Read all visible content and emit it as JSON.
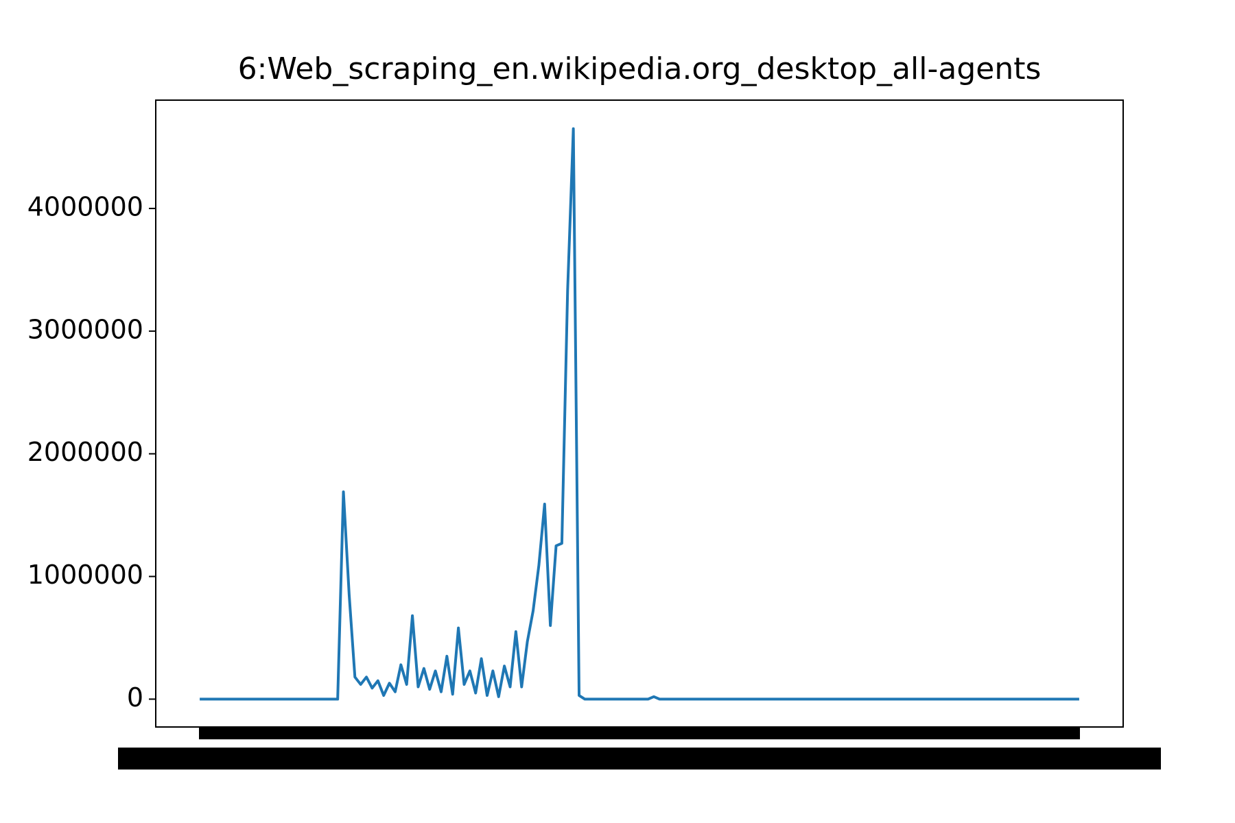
{
  "chart_data": {
    "type": "line",
    "title": "6:Web_scraping_en.wikipedia.org_desktop_all-agents",
    "series": [
      {
        "color": "#1f77b4",
        "values": [
          0,
          0,
          0,
          0,
          0,
          0,
          0,
          0,
          0,
          0,
          0,
          0,
          0,
          0,
          0,
          0,
          0,
          0,
          0,
          0,
          0,
          0,
          0,
          0,
          0,
          1690000,
          850000,
          180000,
          120000,
          180000,
          90000,
          150000,
          30000,
          130000,
          60000,
          280000,
          120000,
          680000,
          100000,
          250000,
          80000,
          230000,
          60000,
          350000,
          40000,
          580000,
          120000,
          230000,
          50000,
          330000,
          30000,
          230000,
          20000,
          270000,
          100000,
          550000,
          100000,
          470000,
          720000,
          1090000,
          1590000,
          600000,
          1250000,
          1270000,
          3330000,
          4650000,
          30000,
          0,
          0,
          0,
          0,
          0,
          0,
          0,
          0,
          0,
          0,
          0,
          0,
          20000,
          0,
          0,
          0,
          0,
          0,
          0,
          0,
          0,
          0,
          0,
          0,
          0,
          0,
          0,
          0,
          0,
          0,
          0,
          0,
          0,
          0,
          0,
          0,
          0,
          0,
          0,
          0,
          0,
          0,
          0,
          0,
          0,
          0,
          0,
          0,
          0,
          0,
          0,
          0,
          0,
          0,
          0,
          0,
          0,
          0,
          0,
          0,
          0,
          0,
          0,
          0,
          0,
          0,
          0,
          0,
          0,
          0,
          0,
          0,
          0,
          0,
          0,
          0,
          0,
          0,
          0,
          0,
          0,
          0,
          0,
          0,
          0,
          0,
          0
        ]
      }
    ],
    "ylim": [
      -227000,
      4883000
    ],
    "yticks": [
      0,
      1000000,
      2000000,
      3000000,
      4000000
    ]
  }
}
